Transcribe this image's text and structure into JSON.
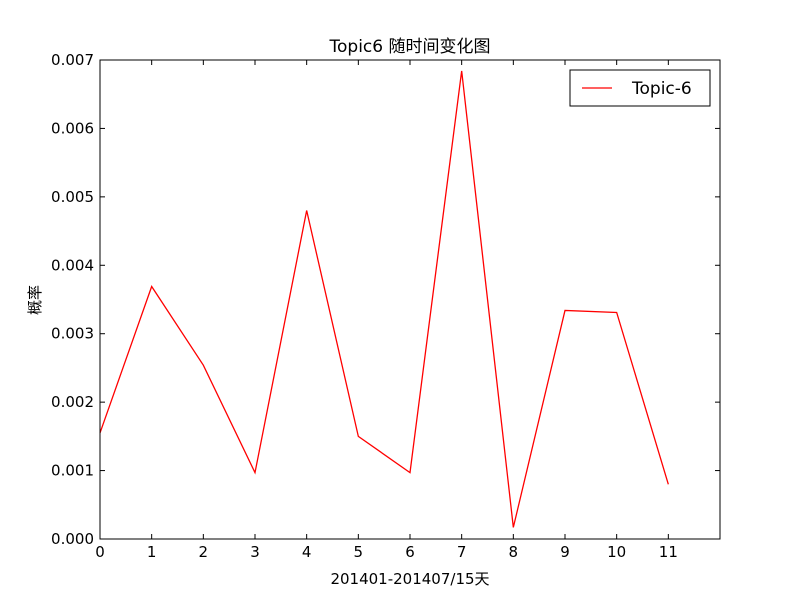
{
  "chart_data": {
    "type": "line",
    "title": "Topic6 随时间变化图",
    "xlabel": "201401-201407/15天",
    "ylabel": "概率",
    "x": [
      0,
      1,
      2,
      3,
      4,
      5,
      6,
      7,
      8,
      9,
      10,
      11
    ],
    "series": [
      {
        "name": "Topic-6",
        "color": "#ff0000",
        "values": [
          0.00155,
          0.00369,
          0.00254,
          0.00097,
          0.0048,
          0.0015,
          0.00097,
          0.00684,
          0.00017,
          0.00334,
          0.00331,
          0.0008
        ]
      }
    ],
    "xlim": [
      0,
      12
    ],
    "ylim": [
      0,
      0.007
    ],
    "xticks": [
      "0",
      "1",
      "2",
      "3",
      "4",
      "5",
      "6",
      "7",
      "8",
      "9",
      "10",
      "11"
    ],
    "yticks": [
      "0.000",
      "0.001",
      "0.002",
      "0.003",
      "0.004",
      "0.005",
      "0.006",
      "0.007"
    ],
    "grid": false,
    "legend_position": "top-right"
  }
}
